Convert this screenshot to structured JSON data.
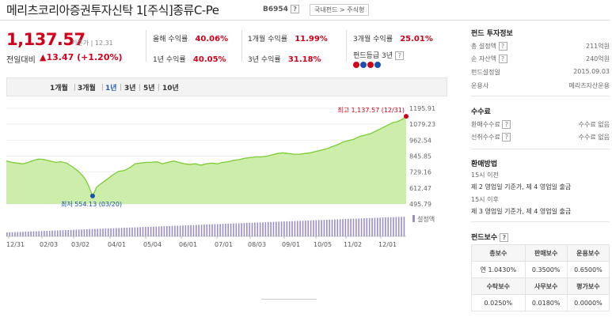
{
  "header": {
    "title": "메리츠코리아증권투자신탁 1[주식]종류C-Pe",
    "code": "B6954",
    "help": "?",
    "breadcrumb": "국내펀드 > 주식형"
  },
  "summary": {
    "price": "1,137.57",
    "price_note": "기준가 | 12.31",
    "change_label": "전일대비",
    "change_value": "▲13.47 (+1.20%)"
  },
  "returns": [
    {
      "label": "올해 수익률",
      "value": "40.06%"
    },
    {
      "label": "1개월 수익률",
      "value": "11.99%"
    },
    {
      "label": "3개월 수익률",
      "value": "25.01%"
    },
    {
      "label": "1년 수익률",
      "value": "40.05%"
    },
    {
      "label": "3년 수익률",
      "value": "31.18%"
    }
  ],
  "grade": {
    "label": "펀드등급 3년",
    "help": "?",
    "colors": [
      "#d0021b",
      "#1a4fb0",
      "#d0021b",
      "#1a4fb0"
    ]
  },
  "tabs": [
    {
      "label": "1개월",
      "active": false
    },
    {
      "label": "3개월",
      "active": false
    },
    {
      "label": "1년",
      "active": true
    },
    {
      "label": "3년",
      "active": false
    },
    {
      "label": "5년",
      "active": false
    },
    {
      "label": "10년",
      "active": false
    }
  ],
  "chart_data": {
    "type": "area",
    "title": "",
    "x_ticks": [
      "12/31",
      "02/03",
      "03/02",
      "04/01",
      "05/04",
      "06/01",
      "07/01",
      "08/03",
      "09/01",
      "10/05",
      "11/02",
      "12/01"
    ],
    "y_ticks": [
      1195.91,
      1079.23,
      962.54,
      845.85,
      729.16,
      612.47,
      495.79
    ],
    "ylim": [
      495.79,
      1195.91
    ],
    "series": [
      {
        "values": [
          [
            0,
            810
          ],
          [
            4,
            800
          ],
          [
            8,
            795
          ],
          [
            12,
            790
          ],
          [
            16,
            800
          ],
          [
            20,
            815
          ],
          [
            24,
            825
          ],
          [
            28,
            820
          ],
          [
            32,
            810
          ],
          [
            36,
            800
          ],
          [
            40,
            805
          ],
          [
            44,
            795
          ],
          [
            48,
            770
          ],
          [
            52,
            740
          ],
          [
            56,
            700
          ],
          [
            58,
            670
          ],
          [
            60,
            630
          ],
          [
            62,
            580
          ],
          [
            63,
            554.13
          ],
          [
            66,
            620
          ],
          [
            70,
            650
          ],
          [
            74,
            680
          ],
          [
            78,
            710
          ],
          [
            82,
            735
          ],
          [
            86,
            740
          ],
          [
            90,
            760
          ],
          [
            94,
            790
          ],
          [
            98,
            795
          ],
          [
            102,
            800
          ],
          [
            106,
            800
          ],
          [
            110,
            805
          ],
          [
            114,
            790
          ],
          [
            118,
            800
          ],
          [
            122,
            810
          ],
          [
            126,
            800
          ],
          [
            130,
            790
          ],
          [
            134,
            785
          ],
          [
            138,
            790
          ],
          [
            142,
            780
          ],
          [
            146,
            790
          ],
          [
            150,
            795
          ],
          [
            154,
            790
          ],
          [
            158,
            800
          ],
          [
            162,
            805
          ],
          [
            166,
            815
          ],
          [
            170,
            820
          ],
          [
            174,
            830
          ],
          [
            178,
            835
          ],
          [
            182,
            840
          ],
          [
            186,
            840
          ],
          [
            190,
            845
          ],
          [
            194,
            855
          ],
          [
            198,
            865
          ],
          [
            202,
            870
          ],
          [
            206,
            865
          ],
          [
            210,
            860
          ],
          [
            214,
            860
          ],
          [
            218,
            865
          ],
          [
            222,
            870
          ],
          [
            226,
            880
          ],
          [
            230,
            890
          ],
          [
            234,
            900
          ],
          [
            238,
            915
          ],
          [
            242,
            930
          ],
          [
            246,
            950
          ],
          [
            250,
            960
          ],
          [
            254,
            970
          ],
          [
            258,
            990
          ],
          [
            262,
            1000
          ],
          [
            266,
            1010
          ],
          [
            270,
            1030
          ],
          [
            274,
            1050
          ],
          [
            278,
            1070
          ],
          [
            282,
            1090
          ],
          [
            286,
            1100
          ],
          [
            290,
            1120
          ],
          [
            292,
            1137.57
          ]
        ]
      }
    ],
    "max_label": "최고 1,137.57 (12/31)",
    "min_label": "최저 554.13 (03/20)",
    "volume_label": "설정액",
    "colors": {
      "line": "#7ccc34",
      "fill": "#cdeeaa",
      "volume": "#9b8ec8",
      "max": "#d0021b",
      "min": "#1a4fb0"
    }
  },
  "sidebar": {
    "info_title": "펀드 투자정보",
    "info": [
      {
        "label": "총 설정액",
        "help": true,
        "value": "211억원"
      },
      {
        "label": "순 자산액",
        "help": true,
        "value": "240억원"
      },
      {
        "label": "펀드설정일",
        "help": false,
        "value": "2015.09.03"
      },
      {
        "label": "운용사",
        "help": false,
        "value": "메리츠자산운용"
      }
    ],
    "fee_title": "수수료",
    "fees": [
      {
        "label": "환매수수료",
        "value": "수수료 없음"
      },
      {
        "label": "선취수수료",
        "value": "수수료 없음"
      }
    ],
    "redeem_title": "환매방법",
    "redeem": [
      {
        "label": "15시 이전",
        "value": "제 2 영업일 기준가, 제 4 영업일 출금"
      },
      {
        "label": "15시 이후",
        "value": "제 3 영업일 기준가, 제 4 영업일 출금"
      }
    ],
    "pay_title": "펀드보수",
    "pay_help": "?",
    "pay_table": {
      "head1": [
        "총보수",
        "판매보수",
        "운용보수"
      ],
      "row1": [
        "연 1.0430%",
        "0.3500%",
        "0.6500%"
      ],
      "head2": [
        "수탁보수",
        "사무보수",
        "평가보수"
      ],
      "row2": [
        "0.0250%",
        "0.0180%",
        "0.0000%"
      ]
    }
  }
}
